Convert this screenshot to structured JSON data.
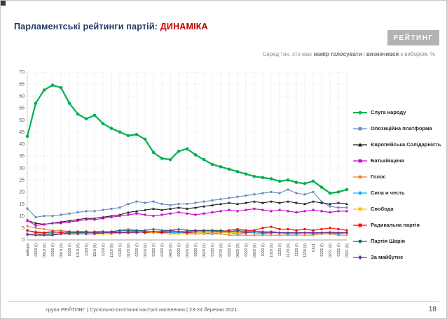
{
  "slide": {
    "title": {
      "part1": "Парламентські рейтинги партій: ",
      "part2": "ДИНАМІКА"
    },
    "logo": "РЕЙТИНГ",
    "subtitle": {
      "p1": "Серед тих, хто має ",
      "p2": "намір голосувати",
      "p3": " і ",
      "p4": "визначився",
      "p5": " з вибором, %"
    },
    "footer": {
      "text": "група РЕЙТИНГ | Суспільно-політичні настрої населення | 23-24 березня 2021",
      "page": "18"
    }
  },
  "chart_data": {
    "type": "line",
    "title": "Парламентські рейтинги партій: ДИНАМІКА",
    "ylim": [
      0,
      70
    ],
    "ytick": 5,
    "grid": true,
    "legend_position": "right",
    "x": [
      "вибори",
      "0819 (I)",
      "0819 (II)",
      "0919 (I)",
      "0919 (II)",
      "1019 (I)",
      "1019 (II)",
      "1119 (I)",
      "1119 (II)",
      "1219 (I)",
      "1219 (II)",
      "0120 (I)",
      "0120 (II)",
      "0220 (I)",
      "0220 (II)",
      "0320 (I)",
      "0420 (I)",
      "0420 (II)",
      "0520 (I)",
      "0520 (II)",
      "0620 (I)",
      "0620 (II)",
      "0720 (I)",
      "0720 (II)",
      "0820 (I)",
      "0820 (II)",
      "0920 (I)",
      "0920 (II)",
      "1020 (I)",
      "1020 (II)",
      "1120 (I)",
      "1120 (II)",
      "1220 (I)",
      "1220 (II)",
      "0121",
      "0221 (I)",
      "0221 (II)",
      "0321 (I)",
      "0321 (II)"
    ],
    "series": [
      {
        "name": "Слуга народу",
        "color": "#00b050",
        "marker": "circle",
        "emphasis": true,
        "values": [
          43.2,
          57,
          62.5,
          64.5,
          63.5,
          57,
          52.5,
          50.5,
          52,
          48.5,
          46.5,
          45,
          43.5,
          44,
          42,
          36.5,
          34,
          33.5,
          37,
          38,
          35.5,
          33.5,
          31.5,
          30.5,
          29.5,
          28.5,
          27.5,
          26.5,
          26,
          25.5,
          24.5,
          25,
          24,
          23.5,
          24.5,
          22,
          19.5,
          20,
          21
        ]
      },
      {
        "name": "Опозиційна платформа",
        "color": "#6b88c4",
        "marker": "square",
        "emphasis": false,
        "values": [
          13.1,
          9.5,
          10,
          10,
          10.5,
          11,
          11.5,
          12,
          12,
          12.5,
          13,
          13.5,
          15,
          16,
          15.5,
          16,
          15,
          14.5,
          15,
          15,
          15.5,
          16,
          16.5,
          17,
          17.5,
          18,
          18.5,
          19,
          19.5,
          20,
          19.5,
          21,
          19.5,
          19,
          20,
          16,
          14,
          13.5,
          13.5
        ]
      },
      {
        "name": "Європейська Солідарність",
        "color": "#1a1a1a",
        "marker": "triangle",
        "emphasis": false,
        "values": [
          8.1,
          7,
          6.5,
          7,
          7.5,
          8,
          8.5,
          9,
          9,
          9.5,
          10,
          10.5,
          11.5,
          12,
          12.5,
          13,
          12.5,
          13,
          13.5,
          13,
          13.5,
          14,
          14.5,
          15,
          15.5,
          15,
          15.5,
          16,
          15.5,
          16,
          15.5,
          16,
          15.5,
          15,
          16,
          15.5,
          15,
          15.5,
          15
        ]
      },
      {
        "name": "Батьківщина",
        "color": "#cc00cc",
        "marker": "square",
        "emphasis": false,
        "values": [
          8.2,
          6,
          6.5,
          7,
          7,
          7.5,
          8,
          8.5,
          8.5,
          9,
          9.5,
          10,
          10.5,
          11,
          10.5,
          10,
          10.5,
          11,
          11.5,
          11,
          10.5,
          11,
          11.5,
          12,
          12.5,
          12,
          12.5,
          13,
          12.5,
          12,
          12.5,
          12,
          11.5,
          12,
          12.5,
          12,
          11.5,
          12,
          12
        ]
      },
      {
        "name": "Голос",
        "color": "#ed7d31",
        "marker": "circle",
        "emphasis": false,
        "values": [
          5.8,
          5,
          4.5,
          4,
          4,
          3.5,
          3.5,
          3,
          3,
          3,
          3.5,
          4,
          4.5,
          4,
          3.5,
          3,
          3,
          3,
          2.5,
          2.5,
          2.5,
          2.5,
          2.5,
          2.5,
          2,
          2,
          2,
          2,
          2,
          2,
          2,
          2,
          2,
          2,
          2,
          2.5,
          2.5,
          2,
          2
        ]
      },
      {
        "name": "Сила и честь",
        "color": "#00b0f0",
        "marker": "diamond",
        "emphasis": false,
        "values": [
          3.8,
          3.5,
          3,
          3,
          3.5,
          3,
          3,
          3.5,
          3,
          3,
          3,
          3.5,
          3,
          4,
          3.5,
          3,
          3.5,
          3,
          3,
          3,
          3,
          3,
          2.5,
          3,
          3,
          2.5,
          3,
          3,
          2.5,
          3,
          3,
          2.5,
          2.5,
          3,
          2.5,
          3,
          3,
          2.5,
          3
        ]
      },
      {
        "name": "Свобода",
        "color": "#ffc000",
        "marker": "square",
        "emphasis": false,
        "values": [
          2.2,
          2.5,
          2.5,
          2,
          2.5,
          2.5,
          2.5,
          2.5,
          2.5,
          2.5,
          2.5,
          3,
          3,
          3.5,
          3,
          3,
          3,
          2.5,
          2.5,
          2.5,
          3,
          3,
          3,
          3,
          3,
          3,
          3,
          3.5,
          3,
          3,
          3,
          3,
          3,
          3,
          3,
          3,
          3.5,
          3,
          3
        ]
      },
      {
        "name": "Радикальна партія",
        "color": "#ff0000",
        "marker": "square",
        "emphasis": false,
        "values": [
          4,
          3,
          3,
          3.5,
          3,
          3.5,
          3.5,
          3.5,
          3,
          3.5,
          3.5,
          3,
          3.5,
          3.5,
          3,
          3.5,
          3,
          3.5,
          3.5,
          3,
          3.5,
          4,
          4,
          3.5,
          4,
          4.5,
          4,
          4,
          5,
          5.5,
          4.5,
          4.5,
          4,
          4.5,
          4,
          4.5,
          5,
          4.5,
          4
        ]
      },
      {
        "name": "Партія Шарія",
        "color": "#1b6775",
        "marker": "circle",
        "emphasis": false,
        "values": [
          2.2,
          2,
          2.5,
          2.5,
          2.5,
          3,
          3,
          3,
          3.5,
          3.5,
          3.5,
          4,
          4,
          4,
          4,
          4.5,
          4,
          4,
          4.5,
          4,
          4,
          4,
          4,
          4,
          3.5,
          4,
          3.5,
          3.5,
          3.5,
          3.5,
          3,
          3,
          3,
          3,
          3,
          3,
          3,
          3,
          3
        ]
      },
      {
        "name": "За майбутнє",
        "color": "#7030a0",
        "marker": "diamond",
        "emphasis": false,
        "values": [
          2.5,
          2,
          2,
          2,
          2.5,
          2.5,
          2.5,
          2.5,
          2.5,
          3,
          3,
          3,
          3,
          3,
          3.5,
          3.5,
          3.5,
          4,
          3.5,
          3.5,
          4,
          3.5,
          3.5,
          3.5,
          3.5,
          3.5,
          3,
          3.5,
          3,
          3,
          3,
          3,
          3,
          3,
          3,
          3,
          3,
          3,
          3
        ]
      }
    ]
  }
}
